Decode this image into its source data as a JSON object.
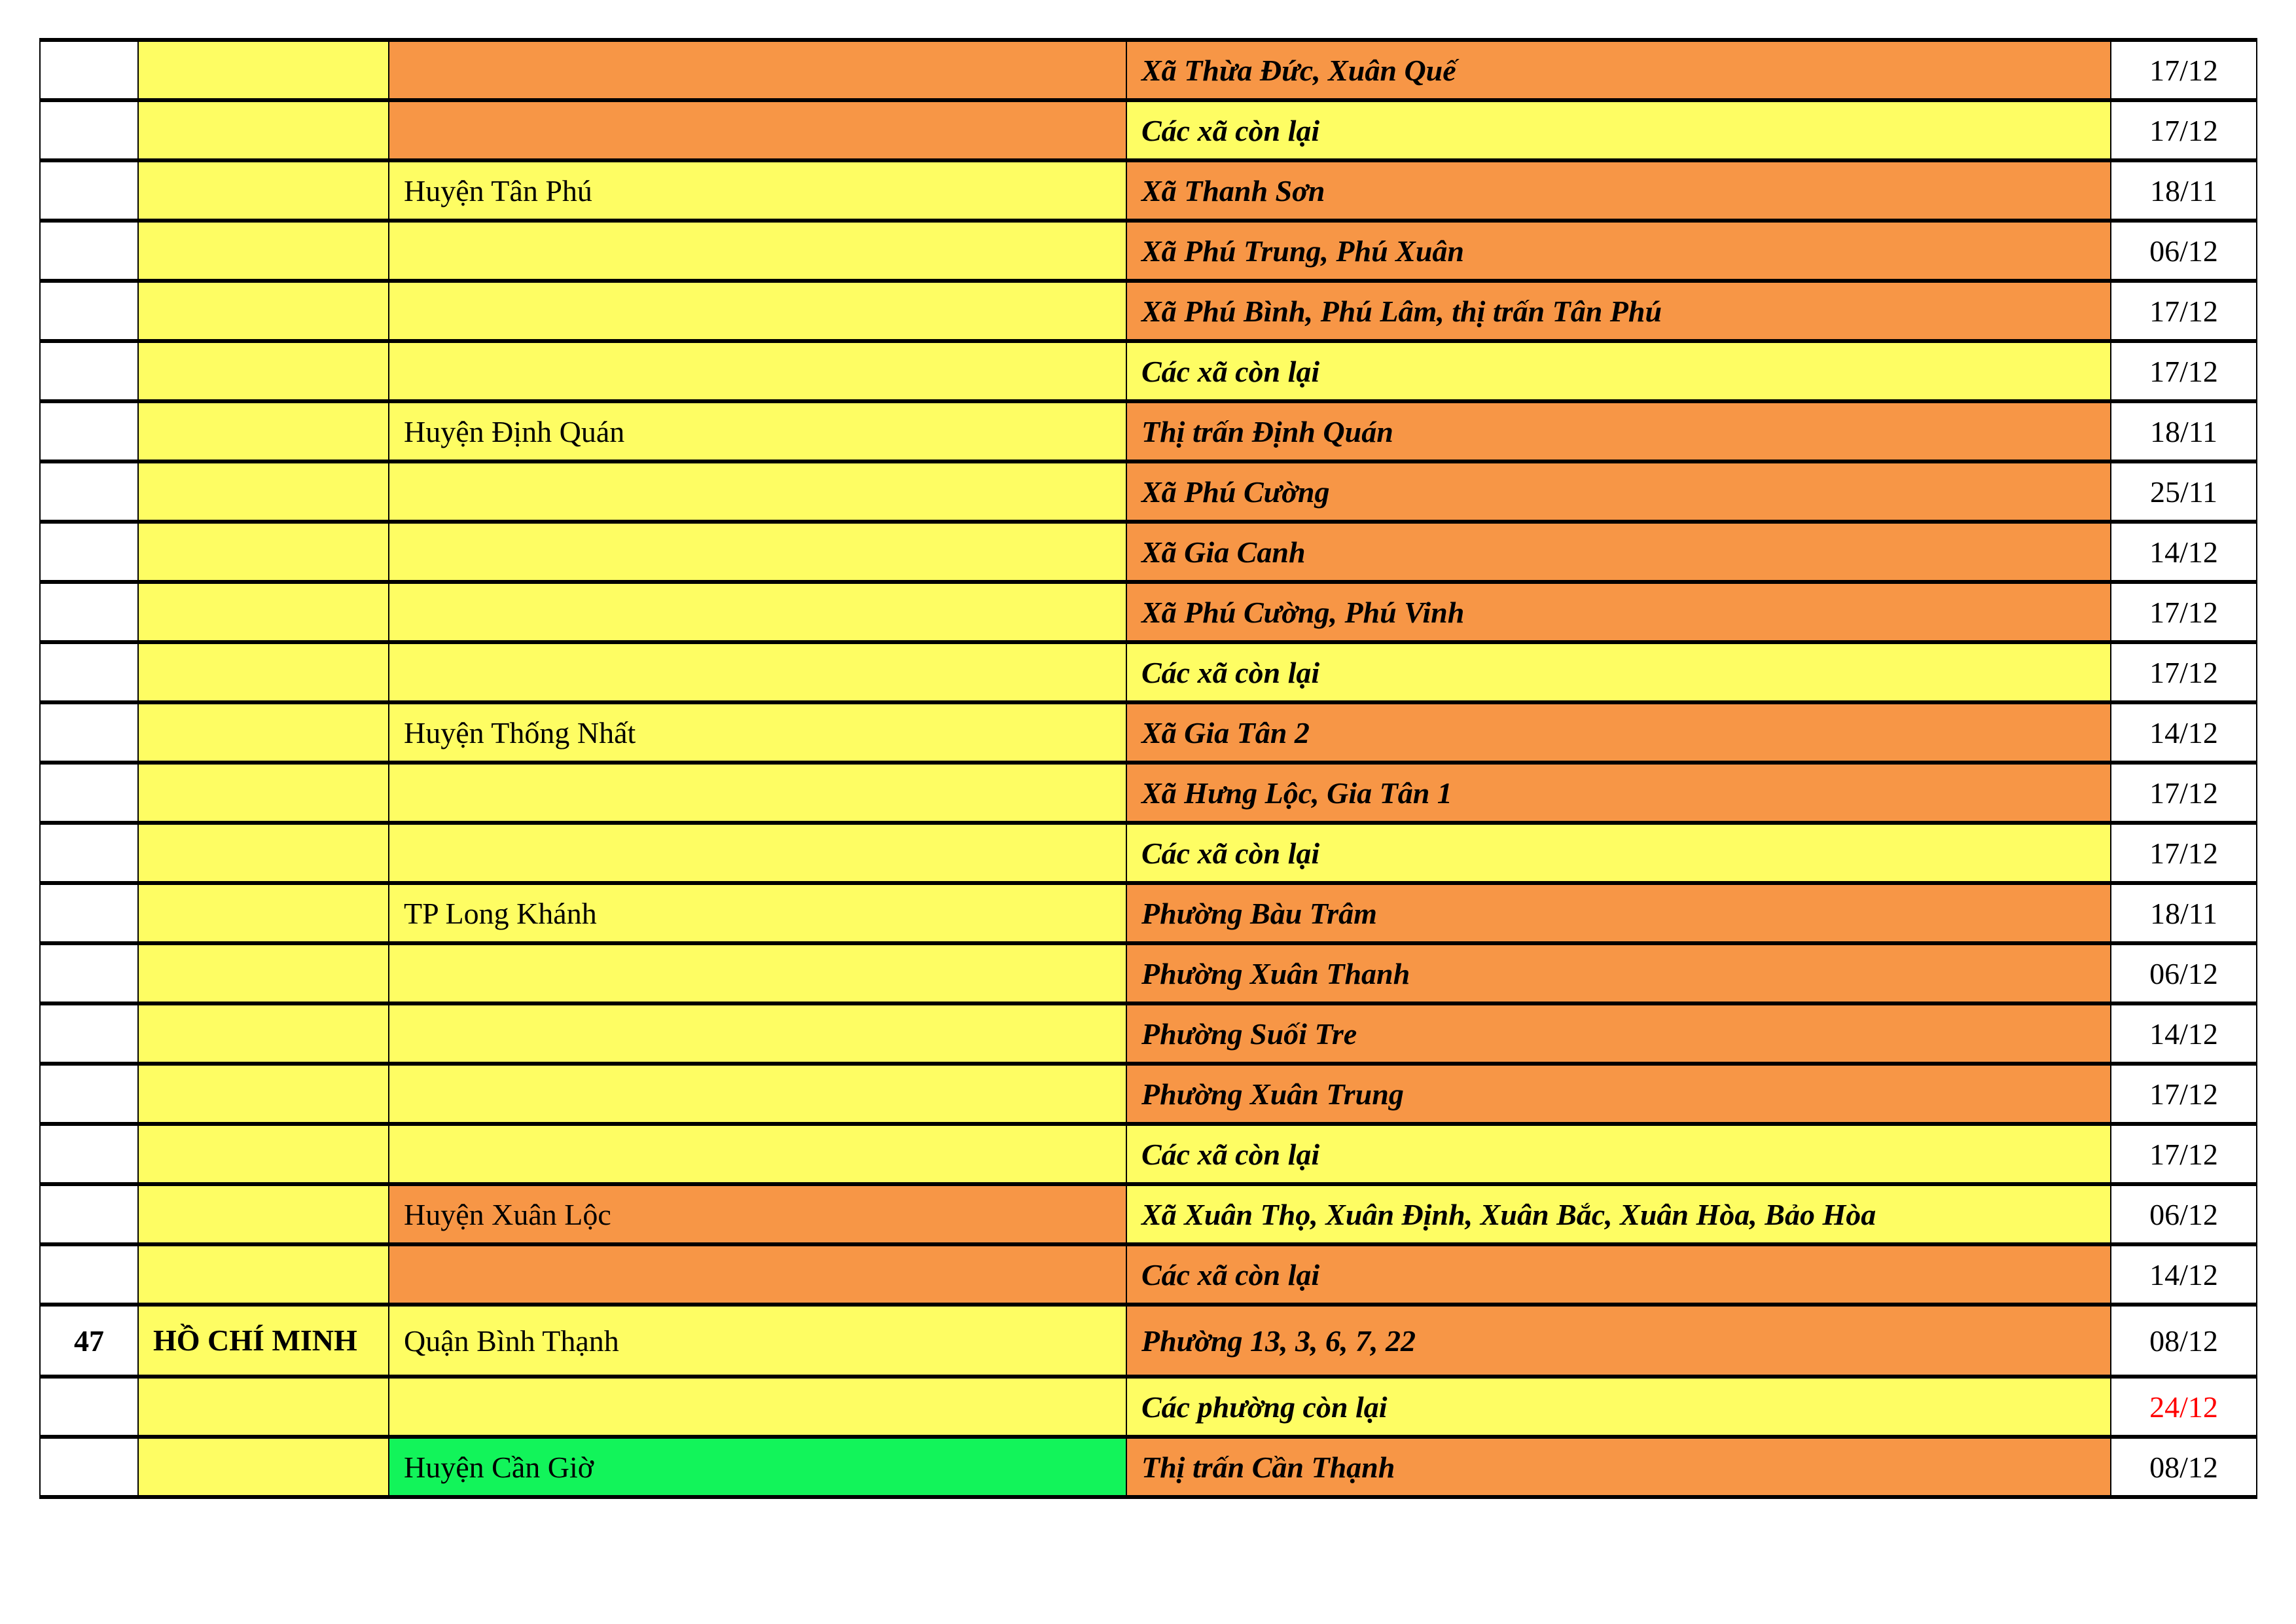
{
  "colors": {
    "white": "#FFFFFF",
    "yellow": "#FEFD63",
    "orange": "#F79646",
    "green": "#12F45A",
    "red_text": "#FF0000"
  },
  "rows": [
    {
      "stt": "",
      "province": "",
      "district": "",
      "ward": "Xã Thừa Đức, Xuân Quế",
      "date": "17/12",
      "district_fill": "orange",
      "ward_fill": "orange"
    },
    {
      "stt": "",
      "province": "",
      "district": "",
      "ward": "Các xã còn lại",
      "date": "17/12",
      "district_fill": "orange",
      "ward_fill": "yellow"
    },
    {
      "stt": "",
      "province": "",
      "district": "Huyện Tân Phú",
      "ward": "Xã Thanh Sơn",
      "date": "18/11",
      "district_fill": "yellow",
      "ward_fill": "orange"
    },
    {
      "stt": "",
      "province": "",
      "district": "",
      "ward": "Xã Phú Trung, Phú Xuân",
      "date": "06/12",
      "district_fill": "yellow",
      "ward_fill": "orange"
    },
    {
      "stt": "",
      "province": "",
      "district": "",
      "ward": "Xã Phú Bình, Phú Lâm, thị trấn Tân Phú",
      "date": "17/12",
      "district_fill": "yellow",
      "ward_fill": "orange"
    },
    {
      "stt": "",
      "province": "",
      "district": "",
      "ward": "Các xã còn lại",
      "date": "17/12",
      "district_fill": "yellow",
      "ward_fill": "yellow"
    },
    {
      "stt": "",
      "province": "",
      "district": "Huyện Định Quán",
      "ward": "Thị trấn Định Quán",
      "date": "18/11",
      "district_fill": "yellow",
      "ward_fill": "orange"
    },
    {
      "stt": "",
      "province": "",
      "district": "",
      "ward": "Xã Phú Cường",
      "date": "25/11",
      "district_fill": "yellow",
      "ward_fill": "orange"
    },
    {
      "stt": "",
      "province": "",
      "district": "",
      "ward": "Xã Gia Canh",
      "date": "14/12",
      "district_fill": "yellow",
      "ward_fill": "orange"
    },
    {
      "stt": "",
      "province": "",
      "district": "",
      "ward": "Xã Phú Cường, Phú Vinh",
      "date": "17/12",
      "district_fill": "yellow",
      "ward_fill": "orange"
    },
    {
      "stt": "",
      "province": "",
      "district": "",
      "ward": "Các xã còn lại",
      "date": "17/12",
      "district_fill": "yellow",
      "ward_fill": "yellow"
    },
    {
      "stt": "",
      "province": "",
      "district": "Huyện Thống Nhất",
      "ward": "Xã Gia Tân 2",
      "date": "14/12",
      "district_fill": "yellow",
      "ward_fill": "orange"
    },
    {
      "stt": "",
      "province": "",
      "district": "",
      "ward": "Xã Hưng Lộc, Gia Tân 1",
      "date": "17/12",
      "district_fill": "yellow",
      "ward_fill": "orange"
    },
    {
      "stt": "",
      "province": "",
      "district": "",
      "ward": "Các xã còn lại",
      "date": "17/12",
      "district_fill": "yellow",
      "ward_fill": "yellow"
    },
    {
      "stt": "",
      "province": "",
      "district": "TP Long Khánh",
      "ward": "Phường Bàu Trâm",
      "date": "18/11",
      "district_fill": "yellow",
      "ward_fill": "orange"
    },
    {
      "stt": "",
      "province": "",
      "district": "",
      "ward": "Phường Xuân Thanh",
      "date": "06/12",
      "district_fill": "yellow",
      "ward_fill": "orange"
    },
    {
      "stt": "",
      "province": "",
      "district": "",
      "ward": "Phường Suối Tre",
      "date": "14/12",
      "district_fill": "yellow",
      "ward_fill": "orange"
    },
    {
      "stt": "",
      "province": "",
      "district": "",
      "ward": "Phường Xuân Trung",
      "date": "17/12",
      "district_fill": "yellow",
      "ward_fill": "orange"
    },
    {
      "stt": "",
      "province": "",
      "district": "",
      "ward": "Các xã còn lại",
      "date": "17/12",
      "district_fill": "yellow",
      "ward_fill": "yellow"
    },
    {
      "stt": "",
      "province": "",
      "district": "Huyện Xuân Lộc",
      "ward": "Xã Xuân Thọ, Xuân Định, Xuân Bắc, Xuân Hòa, Bảo Hòa",
      "date": "06/12",
      "district_fill": "orange",
      "ward_fill": "yellow"
    },
    {
      "stt": "",
      "province": "",
      "district": "",
      "ward": "Các xã còn lại",
      "date": "14/12",
      "district_fill": "orange",
      "ward_fill": "orange"
    },
    {
      "stt": "47",
      "province": "HỒ CHÍ MINH",
      "district": "Quận Bình Thạnh",
      "ward": "Phường 13, 3, 6, 7, 22",
      "date": "08/12",
      "district_fill": "yellow",
      "ward_fill": "orange"
    },
    {
      "stt": "",
      "province": "",
      "district": "",
      "ward": "Các phường còn lại",
      "date": "24/12",
      "district_fill": "yellow",
      "ward_fill": "yellow",
      "date_color": "red_text"
    },
    {
      "stt": "",
      "province": "",
      "district": "Huyện Cần Giờ",
      "ward": "Thị trấn Cần Thạnh",
      "date": "08/12",
      "district_fill": "green",
      "ward_fill": "orange"
    }
  ]
}
